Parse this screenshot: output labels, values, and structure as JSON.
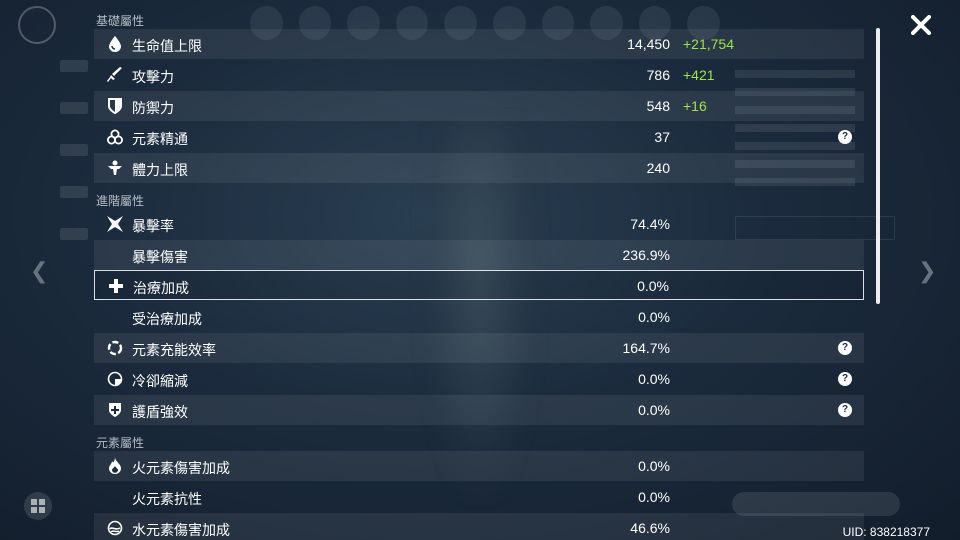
{
  "sections": {
    "base": "基礎屬性",
    "advanced": "進階屬性",
    "elemental": "元素屬性"
  },
  "rows": {
    "hp": {
      "label": "生命值上限",
      "value": "14,450",
      "bonus": "+21,754",
      "icon": "hp-drop-icon"
    },
    "atk": {
      "label": "攻擊力",
      "value": "786",
      "bonus": "+421",
      "icon": "sword-icon"
    },
    "def": {
      "label": "防禦力",
      "value": "548",
      "bonus": "+16",
      "icon": "shield-icon"
    },
    "em": {
      "label": "元素精通",
      "value": "37",
      "icon": "elemental-mastery-icon"
    },
    "stamina": {
      "label": "體力上限",
      "value": "240",
      "icon": "stamina-icon"
    },
    "crit_rate": {
      "label": "暴擊率",
      "value": "74.4%",
      "icon": "crit-star-icon"
    },
    "crit_dmg": {
      "label": "暴擊傷害",
      "value": "236.9%"
    },
    "healing": {
      "label": "治療加成",
      "value": "0.0%",
      "icon": "healing-cross-icon"
    },
    "incoming_healing": {
      "label": "受治療加成",
      "value": "0.0%"
    },
    "energy_recharge": {
      "label": "元素充能效率",
      "value": "164.7%",
      "icon": "energy-recharge-icon"
    },
    "cd_reduction": {
      "label": "冷卻縮減",
      "value": "0.0%",
      "icon": "cooldown-icon"
    },
    "shield_strength": {
      "label": "護盾強效",
      "value": "0.0%",
      "icon": "shield-strength-icon"
    },
    "pyro_dmg": {
      "label": "火元素傷害加成",
      "value": "0.0%",
      "icon": "pyro-icon"
    },
    "pyro_res": {
      "label": "火元素抗性",
      "value": "0.0%"
    },
    "hydro_dmg": {
      "label": "水元素傷害加成",
      "value": "46.6%",
      "icon": "hydro-icon"
    }
  },
  "help_glyph": "?",
  "uid": "UID: 838218377",
  "colors": {
    "bonus": "#9ee54a",
    "text": "#ffffff"
  }
}
